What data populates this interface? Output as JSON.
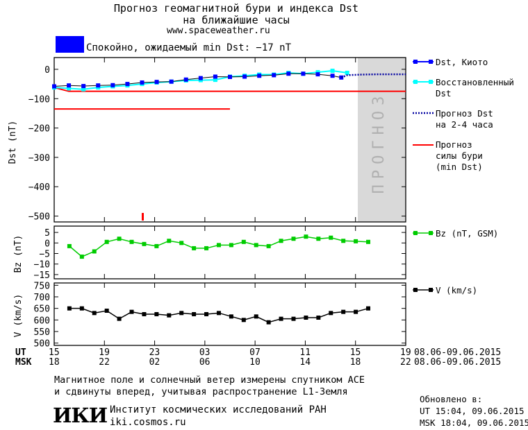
{
  "header": {
    "title_line1": "Прогноз геомагнитной бури и индекса Dst",
    "title_line2": "на ближайшие часы",
    "url": "www.spaceweather.ru",
    "status_text": "Спокойно, ожидаемый min Dst: −17 nT",
    "status_color": "#0000ff"
  },
  "colors": {
    "dst_kyoto": "#0000ff",
    "dst_restored": "#00ffff",
    "forecast_dst": "#0000a0",
    "forecast_storm": "#ff0000",
    "bz": "#00cc00",
    "v": "#000000",
    "forecast_band": "#d9d9d9"
  },
  "legend": {
    "dst_kyoto": "Dst, Киото",
    "dst_restored_1": "Восстановленный",
    "dst_restored_2": "Dst",
    "forecast_dst_1": "Прогноз Dst",
    "forecast_dst_2": "на 2-4 часа",
    "storm_1": "Прогноз",
    "storm_2": "силы бури",
    "storm_3": "(min Dst)",
    "bz": "Bz (nT, GSM)",
    "v": "V (km/s)"
  },
  "forecast_band_label": "ПРОГНОЗ",
  "x_axis": {
    "ut_label": "UT",
    "msk_label": "MSK",
    "ut_ticks": [
      "15",
      "19",
      "23",
      "03",
      "07",
      "11",
      "15",
      "19"
    ],
    "msk_ticks": [
      "18",
      "22",
      "02",
      "06",
      "10",
      "14",
      "18",
      "22"
    ],
    "date_range_ut": "08.06-09.06.2015",
    "date_range_msk": "08.06-09.06.2015"
  },
  "footer": {
    "note_line1": "Магнитное поле и солнечный ветер измерены спутником ACE",
    "note_line2": "и сдвинуты вперед, учитывая распространение L1-Земля",
    "institute": "Институт космических исследований РАН",
    "site": "iki.cosmos.ru",
    "logo_text": "ИКИ",
    "updated_label": "Обновлено в:",
    "updated_ut": "UT  15:04, 09.06.2015",
    "updated_msk": "MSK 18:04, 09.06.2015"
  },
  "chart_data": [
    {
      "type": "line",
      "ylabel": "Dst (nT)",
      "ylim": [
        -520,
        40
      ],
      "yticks": [
        0,
        -100,
        -200,
        -300,
        -400,
        -500
      ],
      "xlim": [
        0,
        24
      ],
      "forecast_region": [
        20,
        24
      ],
      "series": [
        {
          "name": "Dst, Киото",
          "x": [
            0,
            1,
            2,
            3,
            4,
            5,
            6,
            7,
            8,
            9,
            10,
            11,
            12,
            13,
            14,
            15,
            16,
            17,
            18,
            19,
            19.6
          ],
          "y": [
            -58,
            -55,
            -57,
            -55,
            -54,
            -50,
            -45,
            -43,
            -42,
            -35,
            -30,
            -25,
            -26,
            -25,
            -22,
            -20,
            -15,
            -15,
            -17,
            -22,
            -28
          ]
        },
        {
          "name": "Восстановленный Dst",
          "x": [
            0,
            1,
            2,
            3,
            4,
            5,
            6,
            7,
            8,
            9,
            10,
            11,
            12,
            13,
            14,
            15,
            16,
            17,
            18,
            19,
            20
          ],
          "y": [
            -62,
            -65,
            -68,
            -62,
            -58,
            -55,
            -50,
            -45,
            -42,
            -38,
            -37,
            -36,
            -25,
            -22,
            -18,
            -18,
            -12,
            -15,
            -10,
            -5,
            -12
          ]
        },
        {
          "name": "Прогноз Dst на 2-4 часа",
          "x": [
            19.6,
            20,
            21,
            22,
            23,
            24
          ],
          "y": [
            -28,
            -20,
            -18,
            -17,
            -17,
            -17
          ]
        },
        {
          "name": "Прогноз силы бури (min Dst)",
          "segments": [
            {
              "x": [
                0,
                1,
                2,
                3,
                4,
                5,
                6,
                7,
                8,
                9,
                10,
                11,
                12,
                13,
                14,
                15,
                16,
                17,
                18,
                19,
                20,
                21,
                22,
                23,
                24
              ],
              "y": [
                -62,
                -75,
                -75,
                -75,
                -75,
                -75,
                -75,
                -75,
                -75,
                -75,
                -75,
                -75,
                -75,
                -75,
                -75,
                -75,
                -75,
                -75,
                -75,
                -75,
                -75,
                -75,
                -75,
                -75,
                -75
              ]
            },
            {
              "x": [
                0,
                12
              ],
              "y": [
                -135,
                -135
              ]
            }
          ]
        }
      ]
    },
    {
      "type": "line",
      "ylabel": "Bz (nT)",
      "ylim": [
        -17,
        8
      ],
      "yticks": [
        5,
        0,
        -5,
        -10,
        -15
      ],
      "series": [
        {
          "name": "Bz (nT, GSM)",
          "x": [
            1,
            2,
            3,
            4,
            5,
            6,
            7,
            8,
            9,
            10,
            11,
            12,
            13,
            14,
            15,
            16,
            17,
            18,
            19,
            20,
            21,
            22,
            23,
            24,
            25
          ],
          "y": [
            -1.5,
            -6.5,
            -4,
            0.5,
            2,
            0.5,
            -0.5,
            -1.5,
            1,
            0,
            -2.5,
            -2.5,
            -1,
            -1,
            0.5,
            -1,
            -1.5,
            1,
            2,
            3,
            2,
            2.5,
            1,
            0.8,
            0.5
          ]
        }
      ]
    },
    {
      "type": "line",
      "ylabel": "V (km/s)",
      "ylim": [
        490,
        760
      ],
      "yticks": [
        750,
        700,
        650,
        600,
        550,
        500
      ],
      "series": [
        {
          "name": "V (km/s)",
          "x": [
            1,
            2,
            3,
            4,
            5,
            6,
            7,
            8,
            9,
            10,
            11,
            12,
            13,
            14,
            15,
            16,
            17,
            18,
            19,
            20,
            21,
            22,
            23,
            24,
            25
          ],
          "y": [
            650,
            650,
            630,
            640,
            605,
            635,
            625,
            625,
            620,
            630,
            625,
            625,
            630,
            615,
            600,
            615,
            590,
            605,
            605,
            610,
            610,
            630,
            635,
            635,
            650
          ]
        }
      ]
    }
  ]
}
